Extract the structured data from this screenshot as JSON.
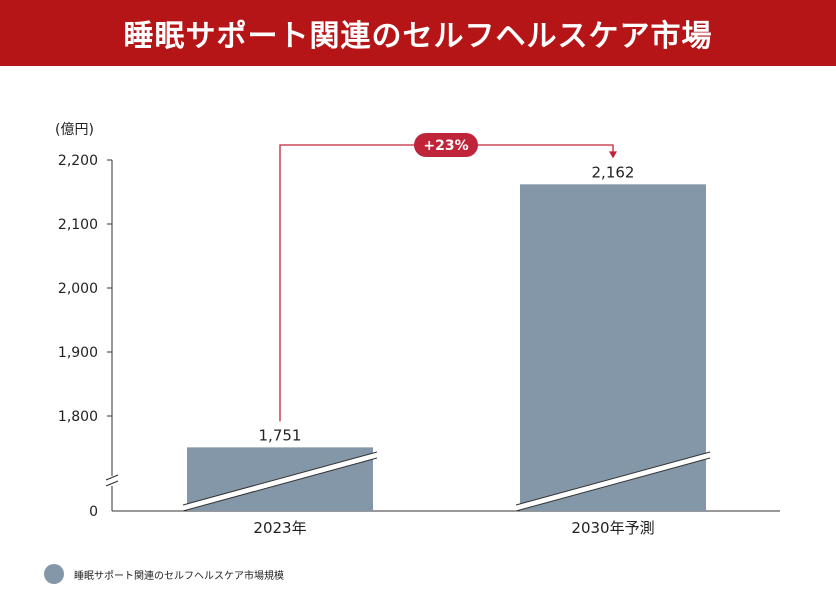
{
  "title": "睡眠サポート関連のセルフヘルスケア市場",
  "colors": {
    "header_bg": "#b51516",
    "bar": "#8497a8",
    "accent": "#c0243a",
    "axis": "#333333"
  },
  "chart_data": {
    "type": "bar",
    "title": "睡眠サポート関連のセルフヘルスケア市場",
    "ylabel": "(億円)",
    "xlabel": "",
    "categories": [
      "2023年",
      "2030年予測"
    ],
    "series": [
      {
        "name": "睡眠サポート関連のセルフヘルスケア市場規模",
        "values": [
          1751,
          2162
        ]
      }
    ],
    "data_labels": [
      "1,751",
      "2,162"
    ],
    "ylim": [
      0,
      2200
    ],
    "axis_break": true,
    "yticks": [
      0,
      1800,
      1900,
      2000,
      2100,
      2200
    ],
    "ytick_labels": [
      "0",
      "1,800",
      "1,900",
      "2,000",
      "2,100",
      "2,200"
    ],
    "annotation": {
      "text": "+23%"
    },
    "legend": "bottom-left",
    "grid": false
  }
}
